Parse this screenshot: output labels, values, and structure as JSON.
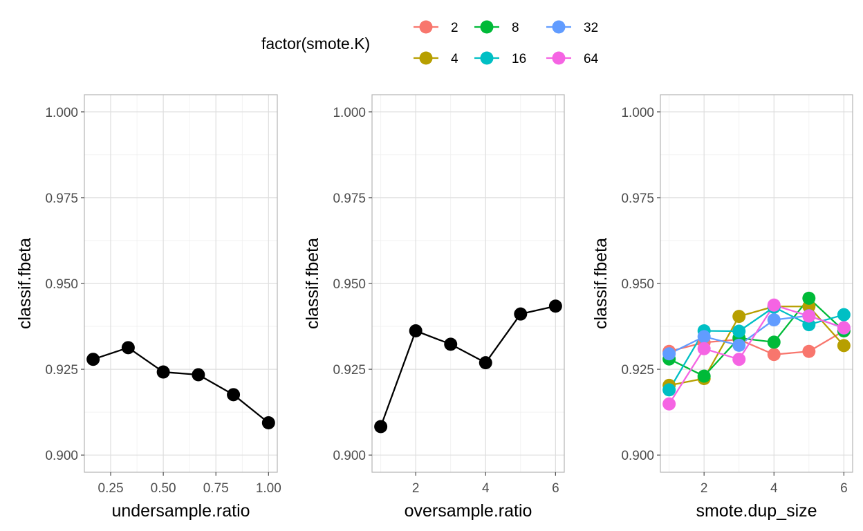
{
  "chart_data": [
    {
      "type": "line",
      "xlabel": "undersample.ratio",
      "ylabel": "classif.fbeta",
      "xlim": [
        0.1667,
        1.0
      ],
      "ylim": [
        0.9,
        1.0
      ],
      "x_ticks": [
        0.25,
        0.5,
        0.75,
        1.0
      ],
      "x_tick_labels": [
        "0.25",
        "0.50",
        "0.75",
        "1.00"
      ],
      "y_ticks": [
        0.9,
        0.925,
        0.95,
        0.975,
        1.0
      ],
      "y_tick_labels": [
        "0.900",
        "0.925",
        "0.950",
        "0.975",
        "1.000"
      ],
      "grid": true,
      "series": [
        {
          "color": "#000000",
          "x": [
            0.1667,
            0.3333,
            0.5,
            0.6667,
            0.8333,
            1.0
          ],
          "y": [
            0.9279,
            0.9313,
            0.9242,
            0.9234,
            0.9176,
            0.9094
          ]
        }
      ]
    },
    {
      "type": "line",
      "xlabel": "oversample.ratio",
      "ylabel": "classif.fbeta",
      "xlim": [
        1,
        6
      ],
      "ylim": [
        0.9,
        1.0
      ],
      "x_ticks": [
        2,
        4,
        6
      ],
      "x_tick_labels": [
        "2",
        "4",
        "6"
      ],
      "y_ticks": [
        0.9,
        0.925,
        0.95,
        0.975,
        1.0
      ],
      "y_tick_labels": [
        "0.900",
        "0.925",
        "0.950",
        "0.975",
        "1.000"
      ],
      "grid": true,
      "series": [
        {
          "color": "#000000",
          "x": [
            1,
            2,
            3,
            4,
            5,
            6
          ],
          "y": [
            0.9083,
            0.9362,
            0.9323,
            0.9269,
            0.9411,
            0.9434
          ]
        }
      ]
    },
    {
      "type": "line",
      "xlabel": "smote.dup_size",
      "ylabel": "classif.fbeta",
      "xlim": [
        1,
        6
      ],
      "ylim": [
        0.9,
        1.0
      ],
      "x_ticks": [
        2,
        4,
        6
      ],
      "x_tick_labels": [
        "2",
        "4",
        "6"
      ],
      "y_ticks": [
        0.9,
        0.925,
        0.95,
        0.975,
        1.0
      ],
      "y_tick_labels": [
        "0.900",
        "0.925",
        "0.950",
        "0.975",
        "1.000"
      ],
      "grid": true,
      "series": [
        {
          "name": "2",
          "color": "#F8766D",
          "x": [
            1,
            2,
            3,
            4,
            5,
            6
          ],
          "y": [
            0.9302,
            0.9328,
            0.9337,
            0.9293,
            0.9302,
            0.9362
          ]
        },
        {
          "name": "4",
          "color": "#B79F00",
          "x": [
            1,
            2,
            3,
            4,
            5,
            6
          ],
          "y": [
            0.9203,
            0.9223,
            0.9404,
            0.9433,
            0.9433,
            0.9319
          ]
        },
        {
          "name": "8",
          "color": "#00BA38",
          "x": [
            1,
            2,
            3,
            4,
            5,
            6
          ],
          "y": [
            0.928,
            0.923,
            0.9341,
            0.9329,
            0.9457,
            0.9362
          ]
        },
        {
          "name": "16",
          "color": "#00BFC4",
          "x": [
            1,
            2,
            3,
            4,
            5,
            6
          ],
          "y": [
            0.919,
            0.9362,
            0.9361,
            0.9431,
            0.938,
            0.9409
          ]
        },
        {
          "name": "32",
          "color": "#619CFF",
          "x": [
            1,
            2,
            3,
            4,
            5,
            6
          ],
          "y": [
            0.9295,
            0.9345,
            0.932,
            0.9394,
            0.9406,
            0.937
          ]
        },
        {
          "name": "64",
          "color": "#F564E3",
          "x": [
            1,
            2,
            3,
            4,
            5,
            6
          ],
          "y": [
            0.9149,
            0.931,
            0.9279,
            0.9437,
            0.9405,
            0.9371
          ]
        }
      ]
    }
  ],
  "legend": {
    "title": "factor(smote.K)",
    "placement": "top",
    "entries": [
      {
        "label": "2",
        "color": "#F8766D"
      },
      {
        "label": "4",
        "color": "#B79F00"
      },
      {
        "label": "8",
        "color": "#00BA38"
      },
      {
        "label": "16",
        "color": "#00BFC4"
      },
      {
        "label": "32",
        "color": "#619CFF"
      },
      {
        "label": "64",
        "color": "#F564E3"
      }
    ]
  }
}
